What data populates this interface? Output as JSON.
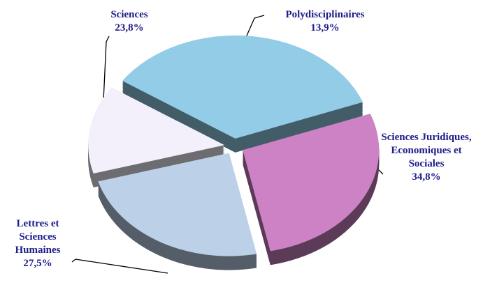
{
  "chart_data": {
    "type": "pie",
    "categories": [
      "Polydisciplinaires",
      "Sciences Juridiques, Economiques et Sociales",
      "Lettres et Sciences Humaines",
      "Sciences"
    ],
    "values": [
      13.9,
      34.8,
      27.5,
      23.8
    ],
    "value_labels": [
      "13,9%",
      "34,8%",
      "27,5%",
      "23,8%"
    ],
    "colors": [
      "#f3f0fc",
      "#92cce6",
      "#cc82c4",
      "#bcd0e8"
    ]
  }
}
